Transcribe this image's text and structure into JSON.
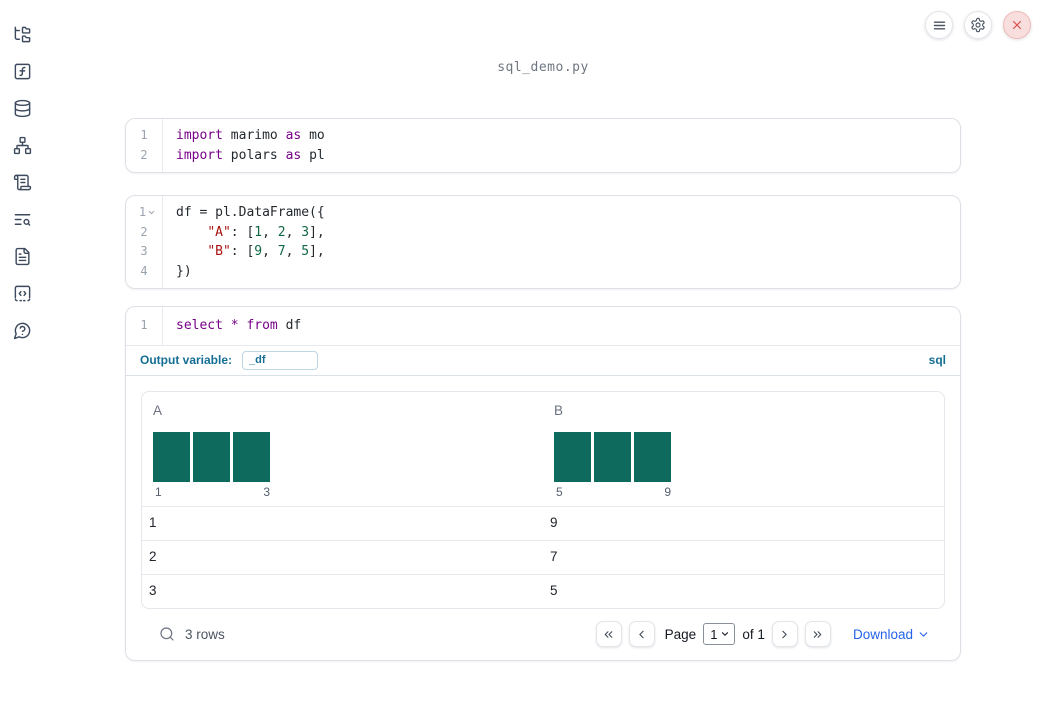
{
  "app": {
    "title": "sql_demo.py"
  },
  "colors": {
    "accent_blue": "#2563eb",
    "sql_label_blue": "#156e93",
    "histogram_teal": "#0e6a5c",
    "keyword_purple": "#770088",
    "string_red": "#aa1111",
    "number_green": "#116644",
    "close_red": "#d9534f"
  },
  "sidebar": {
    "icons": [
      "file-tree-icon",
      "function-square-icon",
      "database-icon",
      "network-icon",
      "scroll-text-icon",
      "text-search-icon",
      "file-text-icon",
      "code-square-dashed-icon",
      "help-bubble-icon"
    ]
  },
  "topbar": {
    "buttons": [
      {
        "icon": "menu-icon"
      },
      {
        "icon": "gear-icon"
      },
      {
        "icon": "close-icon"
      }
    ]
  },
  "cells": [
    {
      "id": "imports",
      "lines": [
        {
          "n": "1",
          "tokens": [
            [
              "kw",
              "import"
            ],
            [
              "pl",
              " marimo "
            ],
            [
              "kw",
              "as"
            ],
            [
              "pl",
              " mo"
            ]
          ]
        },
        {
          "n": "2",
          "tokens": [
            [
              "kw",
              "import"
            ],
            [
              "pl",
              " polars "
            ],
            [
              "kw",
              "as"
            ],
            [
              "pl",
              " pl"
            ]
          ]
        }
      ]
    },
    {
      "id": "dataframe",
      "lines": [
        {
          "n": "1",
          "fold": true,
          "tokens": [
            [
              "pl",
              "df = pl.DataFrame({"
            ]
          ]
        },
        {
          "n": "2",
          "tokens": [
            [
              "pl",
              "    "
            ],
            [
              "str",
              "\"A\""
            ],
            [
              "pl",
              ": ["
            ],
            [
              "num",
              "1"
            ],
            [
              "pl",
              ", "
            ],
            [
              "num",
              "2"
            ],
            [
              "pl",
              ", "
            ],
            [
              "num",
              "3"
            ],
            [
              "pl",
              "],"
            ]
          ]
        },
        {
          "n": "3",
          "tokens": [
            [
              "pl",
              "    "
            ],
            [
              "str",
              "\"B\""
            ],
            [
              "pl",
              ": ["
            ],
            [
              "num",
              "9"
            ],
            [
              "pl",
              ", "
            ],
            [
              "num",
              "7"
            ],
            [
              "pl",
              ", "
            ],
            [
              "num",
              "5"
            ],
            [
              "pl",
              "],"
            ]
          ]
        },
        {
          "n": "4",
          "tokens": [
            [
              "pl",
              "})"
            ]
          ]
        }
      ]
    },
    {
      "id": "sql",
      "lines": [
        {
          "n": "1",
          "tokens": [
            [
              "kw",
              "select"
            ],
            [
              "pl",
              " "
            ],
            [
              "kw",
              "*"
            ],
            [
              "pl",
              " "
            ],
            [
              "kw",
              "from"
            ],
            [
              "pl",
              " df"
            ]
          ]
        }
      ]
    }
  ],
  "sql_cell": {
    "output_variable_label": "Output variable:",
    "output_variable_value": "_df",
    "language_badge": "sql"
  },
  "table": {
    "columns": [
      {
        "name": "A",
        "histogram": {
          "bars": [
            1,
            1,
            1
          ],
          "min_label": "1",
          "max_label": "3"
        }
      },
      {
        "name": "B",
        "histogram": {
          "bars": [
            1,
            1,
            1
          ],
          "min_label": "5",
          "max_label": "9"
        }
      }
    ],
    "rows": [
      [
        "1",
        "9"
      ],
      [
        "2",
        "7"
      ],
      [
        "3",
        "5"
      ]
    ],
    "row_count": "3 rows",
    "pagination": {
      "page_label": "Page",
      "page_value": "1",
      "of_label": "of 1"
    },
    "download_label": "Download"
  }
}
